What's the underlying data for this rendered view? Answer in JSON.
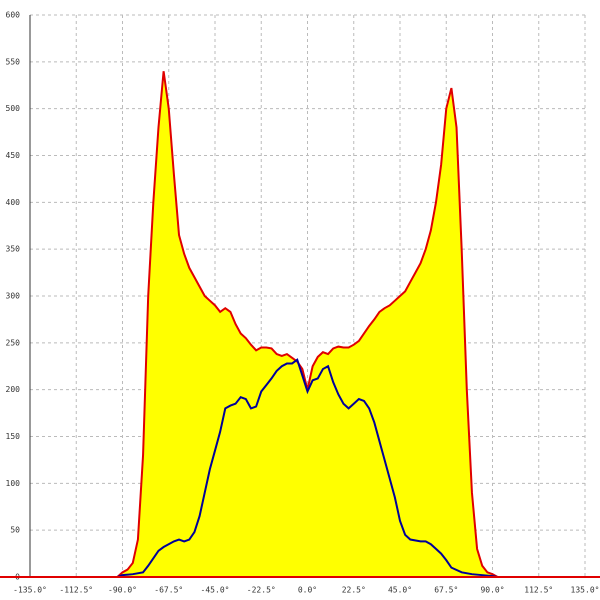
{
  "chart_data": {
    "type": "area-line",
    "xlim": [
      -135,
      135
    ],
    "ylim": [
      0,
      600
    ],
    "grid": true,
    "xticks": [
      {
        "value": -135,
        "label": "-135.0°"
      },
      {
        "value": -112.5,
        "label": "-112.5°"
      },
      {
        "value": -90,
        "label": "-90.0°"
      },
      {
        "value": -67.5,
        "label": "-67.5°"
      },
      {
        "value": -45,
        "label": "-45.0°"
      },
      {
        "value": -22.5,
        "label": "-22.5°"
      },
      {
        "value": 0,
        "label": "0.0°"
      },
      {
        "value": 22.5,
        "label": "22.5°"
      },
      {
        "value": 45,
        "label": "45.0°"
      },
      {
        "value": 67.5,
        "label": "67.5°"
      },
      {
        "value": 90,
        "label": "90.0°"
      },
      {
        "value": 112.5,
        "label": "112.5°"
      },
      {
        "value": 135,
        "label": "135.0°"
      }
    ],
    "yticks": [
      0,
      50,
      100,
      150,
      200,
      250,
      300,
      350,
      400,
      450,
      500,
      550,
      600
    ],
    "series": [
      {
        "kind": "area",
        "color": "#e00000",
        "fill": "#ffff00",
        "x": [
          -92.5,
          -90,
          -87.5,
          -85,
          -82.5,
          -80,
          -77.5,
          -75,
          -72.5,
          -70,
          -67.5,
          -65,
          -62.5,
          -60,
          -57.5,
          -55,
          -52.5,
          -50,
          -47.5,
          -45,
          -42.5,
          -40,
          -37.5,
          -35,
          -32.5,
          -30,
          -27.5,
          -25,
          -22.5,
          -20,
          -17.5,
          -15,
          -12.5,
          -10,
          -7.5,
          -5,
          -2.5,
          0,
          2.5,
          5,
          7.5,
          10,
          12.5,
          15,
          17.5,
          20,
          22.5,
          25,
          27.5,
          30,
          32.5,
          35,
          37.5,
          40,
          42.5,
          45,
          47.5,
          50,
          52.5,
          55,
          57.5,
          60,
          62.5,
          65,
          67.5,
          70,
          72.5,
          75,
          77.5,
          80,
          82.5,
          85,
          87.5,
          90,
          92.5
        ],
        "values": [
          0,
          5,
          8,
          15,
          40,
          130,
          300,
          400,
          480,
          540,
          500,
          430,
          365,
          345,
          330,
          320,
          310,
          300,
          295,
          290,
          283,
          287,
          283,
          270,
          260,
          255,
          248,
          242,
          245,
          245,
          244,
          238,
          236,
          238,
          234,
          230,
          222,
          200,
          225,
          235,
          240,
          238,
          244,
          246,
          245,
          245,
          248,
          252,
          260,
          268,
          275,
          283,
          287,
          290,
          295,
          300,
          305,
          315,
          325,
          335,
          350,
          370,
          400,
          440,
          500,
          522,
          480,
          350,
          200,
          90,
          30,
          12,
          5,
          3,
          0
        ]
      },
      {
        "kind": "line",
        "color": "#000099",
        "x": [
          -92.5,
          -90,
          -85,
          -80,
          -77.5,
          -75,
          -72.5,
          -70,
          -65,
          -62.5,
          -60,
          -57.5,
          -55,
          -52.5,
          -50,
          -47.5,
          -45,
          -42.5,
          -40,
          -37.5,
          -35,
          -32.5,
          -30,
          -27.5,
          -25,
          -22.5,
          -20,
          -17.5,
          -15,
          -12.5,
          -10,
          -7.5,
          -5,
          -2.5,
          0,
          2.5,
          5,
          7.5,
          10,
          12.5,
          15,
          17.5,
          20,
          22.5,
          25,
          27.5,
          30,
          32.5,
          35,
          37.5,
          40,
          42.5,
          45,
          47.5,
          50,
          55,
          57.5,
          60,
          62.5,
          65,
          67.5,
          70,
          75,
          80,
          90,
          92.5
        ],
        "values": [
          0,
          2,
          3,
          5,
          12,
          20,
          28,
          32,
          38,
          40,
          38,
          40,
          48,
          65,
          90,
          115,
          135,
          155,
          180,
          183,
          185,
          192,
          190,
          180,
          182,
          198,
          205,
          212,
          220,
          225,
          228,
          228,
          232,
          215,
          198,
          210,
          212,
          222,
          225,
          208,
          195,
          185,
          180,
          185,
          190,
          188,
          180,
          165,
          145,
          125,
          105,
          85,
          60,
          45,
          40,
          38,
          38,
          35,
          30,
          25,
          18,
          10,
          5,
          3,
          1,
          0
        ]
      }
    ]
  }
}
